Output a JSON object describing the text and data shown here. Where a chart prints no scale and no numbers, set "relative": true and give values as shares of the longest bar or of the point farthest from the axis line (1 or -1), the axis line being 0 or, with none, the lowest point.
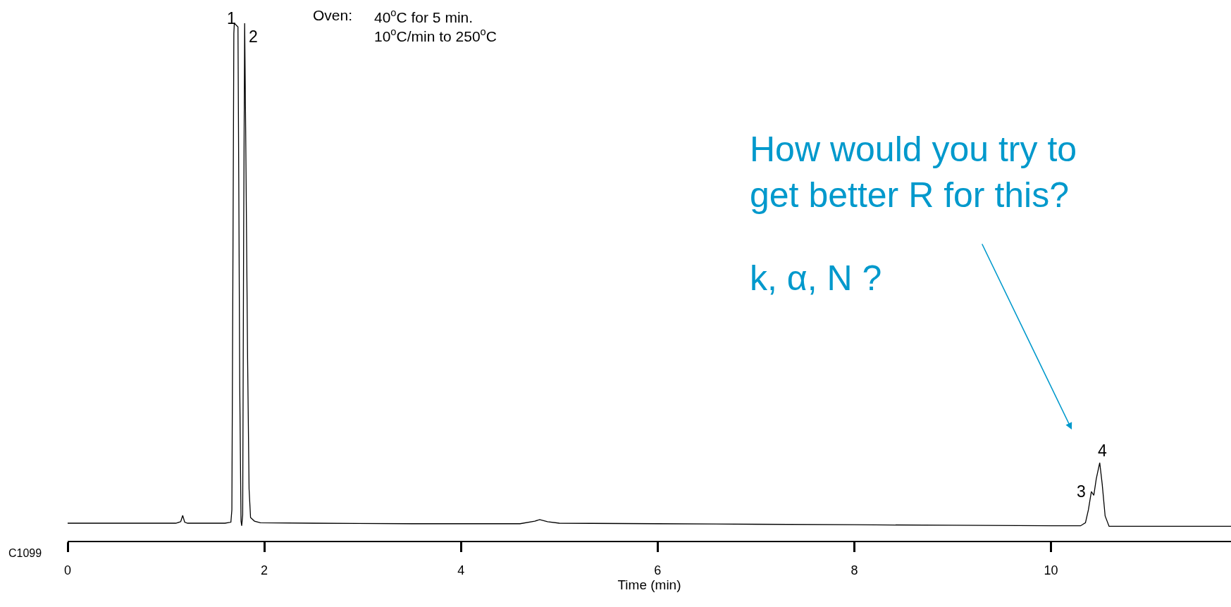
{
  "chart_data": {
    "type": "line",
    "relative": true,
    "xlabel": "Time (min)",
    "xlim": [
      0,
      11.83
    ],
    "xticks": [
      0,
      2,
      4,
      6,
      8,
      10
    ],
    "x": [
      0,
      0.5,
      1.1,
      1.15,
      1.17,
      1.19,
      1.22,
      1.6,
      1.66,
      1.67,
      1.68,
      1.69,
      1.695,
      1.732,
      1.74,
      1.75,
      1.763,
      1.77,
      1.78,
      1.79,
      1.8,
      1.81,
      1.83,
      1.845,
      1.86,
      1.9,
      1.96,
      2.5,
      3.5,
      4.6,
      4.75,
      4.8,
      4.88,
      5.0,
      6.0,
      7.0,
      8.0,
      9.0,
      10.0,
      10.3,
      10.35,
      10.38,
      10.41,
      10.435,
      10.46,
      10.495,
      10.52,
      10.55,
      10.59,
      11.0,
      11.5,
      11.83
    ],
    "series": [
      {
        "color": "#000000",
        "values": [
          0.034,
          0.034,
          0.034,
          0.037,
          0.049,
          0.036,
          0.034,
          0.034,
          0.036,
          0.06,
          0.5,
          0.98,
          1.0,
          0.993,
          0.7,
          0.3,
          0.038,
          0.029,
          0.05,
          0.6,
          1.0,
          0.8,
          0.35,
          0.1,
          0.045,
          0.038,
          0.035,
          0.034,
          0.033,
          0.033,
          0.038,
          0.041,
          0.037,
          0.034,
          0.033,
          0.032,
          0.031,
          0.03,
          0.029,
          0.029,
          0.035,
          0.06,
          0.095,
          0.088,
          0.12,
          0.151,
          0.11,
          0.048,
          0.028,
          0.028,
          0.028,
          0.028
        ]
      }
    ],
    "annotations": [
      {
        "text": "1",
        "x": 1.695,
        "y": 1.0
      },
      {
        "text": "2",
        "x": 1.8,
        "y": 1.0
      },
      {
        "text": "3",
        "x": 10.41,
        "y": 0.095
      },
      {
        "text": "4",
        "x": 10.495,
        "y": 0.151
      },
      "Oven:",
      "40$^{o}$C for 5 min.\n10$^{o}$C/min to 250$^{o}$C",
      "C1099",
      "How would you try to\nget better R for this?",
      "k, α, N ?"
    ]
  }
}
